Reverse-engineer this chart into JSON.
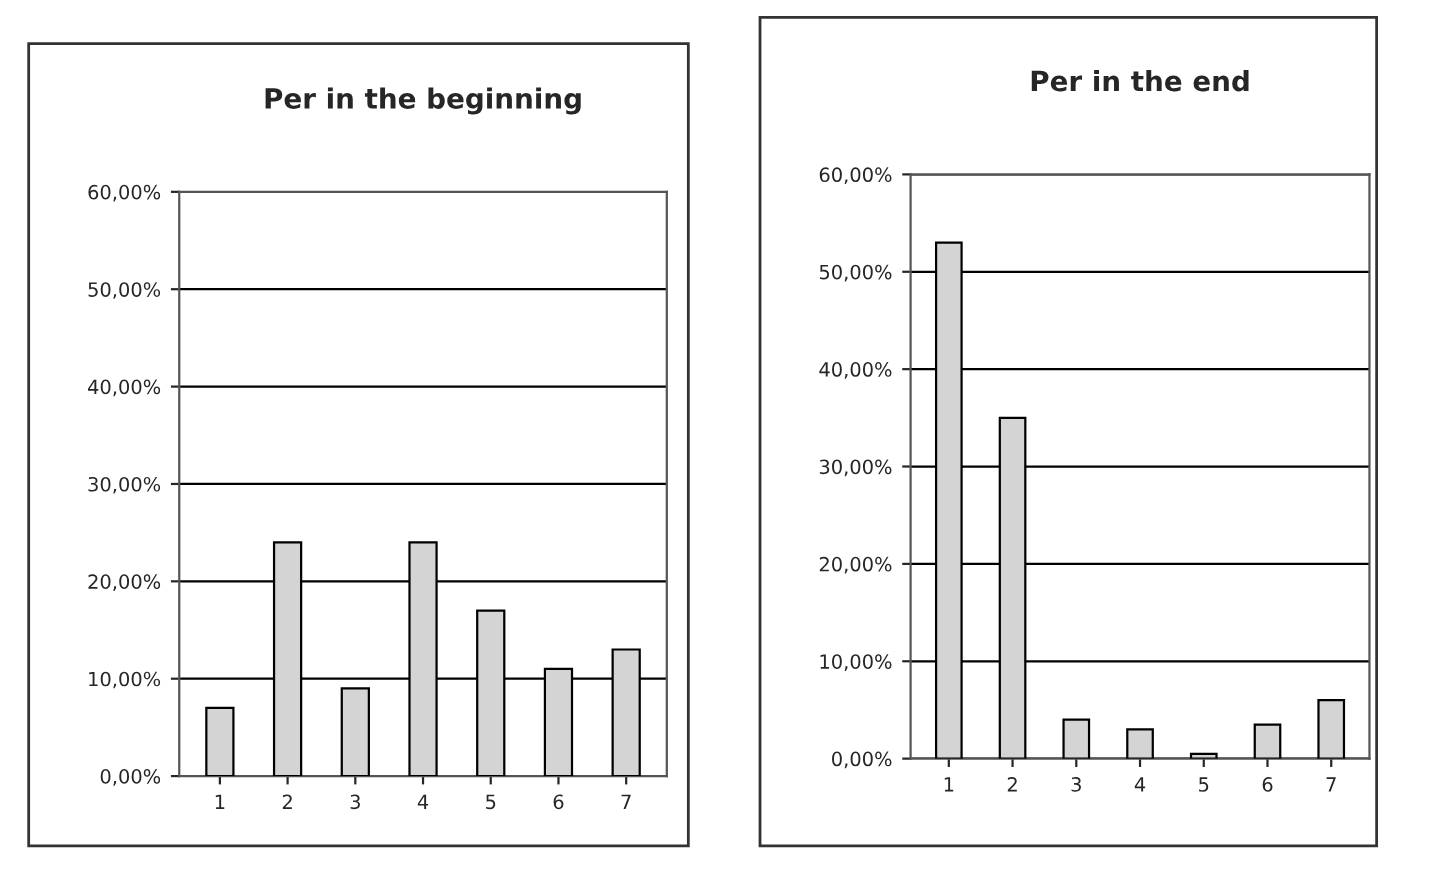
{
  "chart_data": [
    {
      "type": "bar",
      "title": "Per in the beginning",
      "categories": [
        "1",
        "2",
        "3",
        "4",
        "5",
        "6",
        "7"
      ],
      "values": [
        7,
        24,
        9,
        24,
        17,
        11,
        13
      ],
      "color": "#d4d4d4",
      "ylim": [
        0,
        60
      ],
      "yticks": [
        {
          "value": 0,
          "label": "0,00%"
        },
        {
          "value": 10,
          "label": "10,00%"
        },
        {
          "value": 20,
          "label": "20,00%"
        },
        {
          "value": 30,
          "label": "30,00%"
        },
        {
          "value": 40,
          "label": "40,00%"
        },
        {
          "value": 50,
          "label": "50,00%"
        },
        {
          "value": 60,
          "label": "60,00%"
        }
      ],
      "grid": "y"
    },
    {
      "type": "bar",
      "title": "Per in the end",
      "categories": [
        "1",
        "2",
        "3",
        "4",
        "5",
        "6",
        "7"
      ],
      "values": [
        53,
        35,
        4,
        3,
        0.5,
        3.5,
        6
      ],
      "color": "#d4d4d4",
      "ylim": [
        0,
        60
      ],
      "yticks": [
        {
          "value": 0,
          "label": "0,00%"
        },
        {
          "value": 10,
          "label": "10,00%"
        },
        {
          "value": 20,
          "label": "20,00%"
        },
        {
          "value": 30,
          "label": "30,00%"
        },
        {
          "value": 40,
          "label": "40,00%"
        },
        {
          "value": 50,
          "label": "50,00%"
        },
        {
          "value": 60,
          "label": "60,00%"
        }
      ],
      "grid": "y"
    }
  ]
}
